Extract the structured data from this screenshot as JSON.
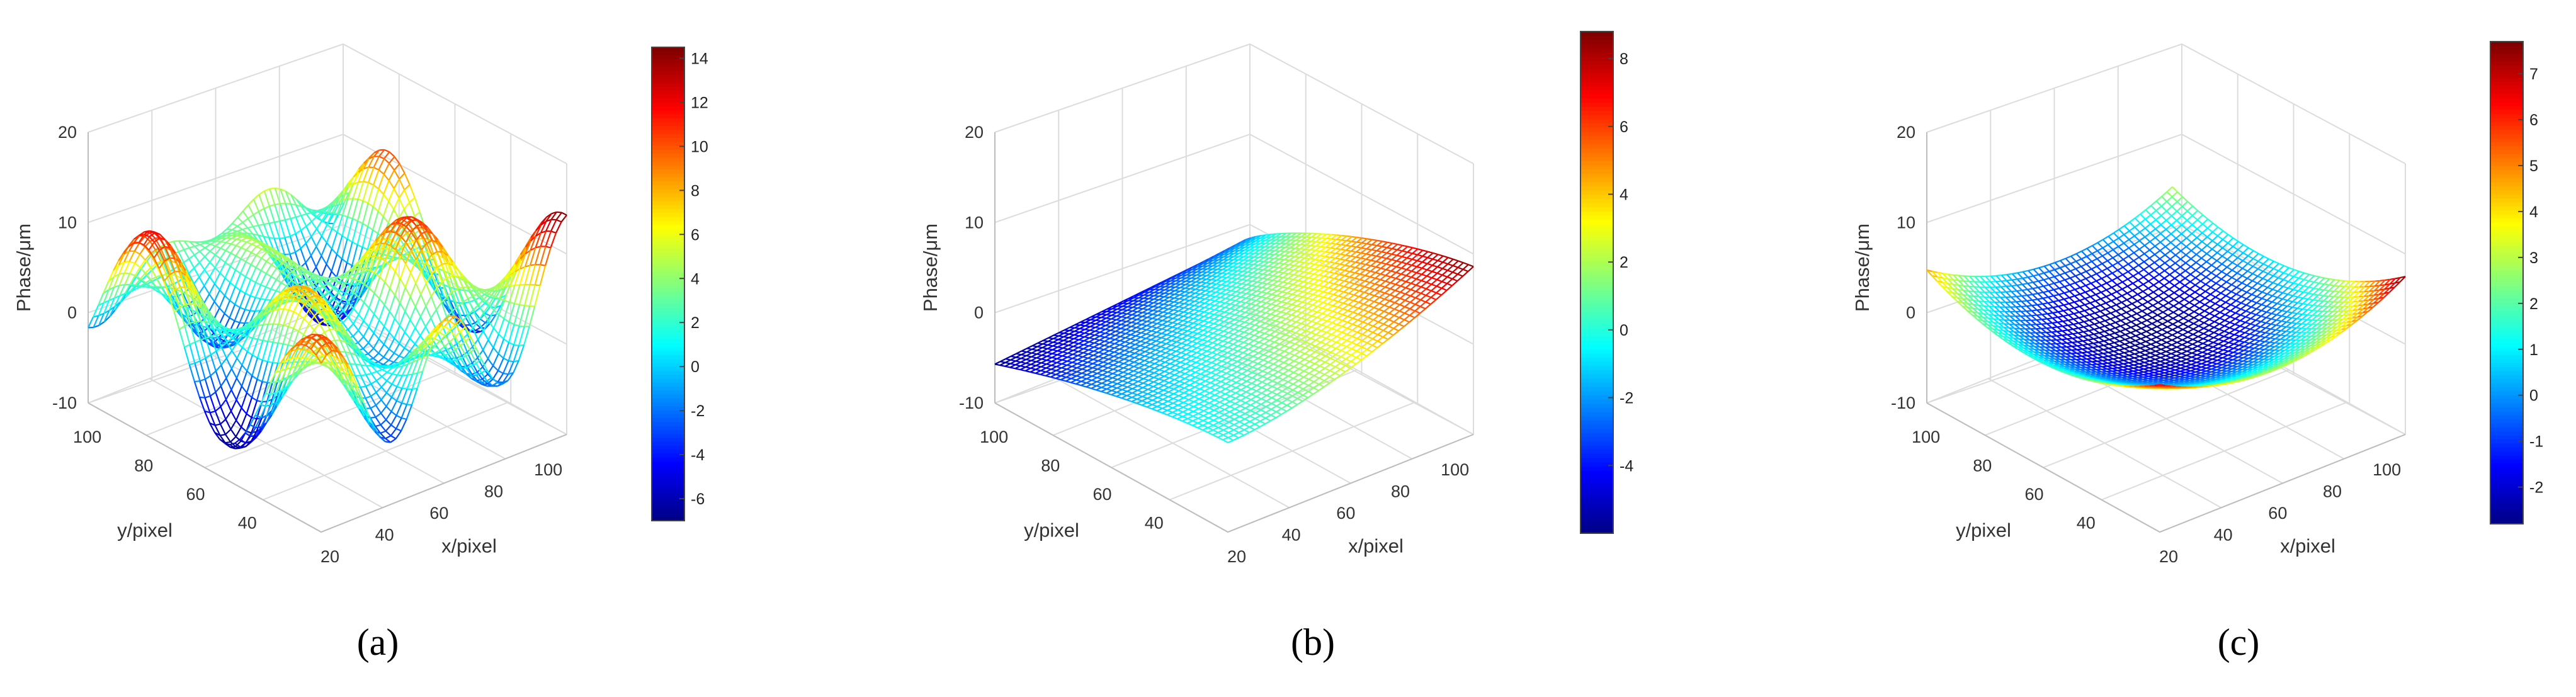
{
  "figure": {
    "captions": [
      "(a)",
      "(b)",
      "(c)"
    ]
  },
  "chart_data": [
    {
      "type": "surface",
      "panel": "a",
      "title": "",
      "xlabel": "x/pixel",
      "ylabel": "y/pixel",
      "zlabel": "Phase/μm",
      "xlim": [
        20,
        110
      ],
      "ylim": [
        20,
        110
      ],
      "zlim": [
        -10,
        20
      ],
      "x_ticks": [
        "20",
        "40",
        "60",
        "80",
        "100"
      ],
      "y_ticks": [
        "40",
        "60",
        "80",
        "100"
      ],
      "z_ticks": [
        "-10",
        "0",
        "10",
        "20"
      ],
      "colorbar": {
        "min": -7,
        "max": 14.5,
        "ticks": [
          "-6",
          "-4",
          "-2",
          "0",
          "2",
          "4",
          "6",
          "8",
          "10",
          "12",
          "14"
        ]
      },
      "surface": {
        "shape": "oscillating",
        "z_min": -6.9,
        "z_max": 14.3
      }
    },
    {
      "type": "surface",
      "panel": "b",
      "title": "",
      "xlabel": "x/pixel",
      "ylabel": "y/pixel",
      "zlabel": "Phase/μm",
      "xlim": [
        20,
        110
      ],
      "ylim": [
        20,
        110
      ],
      "zlim": [
        -10,
        20
      ],
      "x_ticks": [
        "20",
        "40",
        "60",
        "80",
        "100"
      ],
      "y_ticks": [
        "40",
        "60",
        "80",
        "100"
      ],
      "z_ticks": [
        "-10",
        "0",
        "10",
        "20"
      ],
      "colorbar": {
        "min": -6,
        "max": 8.8,
        "ticks": [
          "-4",
          "-2",
          "0",
          "2",
          "4",
          "6",
          "8"
        ]
      },
      "surface": {
        "shape": "tilted bowl",
        "z_min": -5.7,
        "z_max": 8.6
      }
    },
    {
      "type": "surface",
      "panel": "c",
      "title": "",
      "xlabel": "x/pixel",
      "ylabel": "y/pixel",
      "zlabel": "Phase/μm",
      "xlim": [
        20,
        110
      ],
      "ylim": [
        20,
        110
      ],
      "zlim": [
        -10,
        20
      ],
      "x_ticks": [
        "20",
        "40",
        "60",
        "80",
        "100"
      ],
      "y_ticks": [
        "40",
        "60",
        "80",
        "100"
      ],
      "z_ticks": [
        "-10",
        "0",
        "10",
        "20"
      ],
      "colorbar": {
        "min": -2.8,
        "max": 7.7,
        "ticks": [
          "-2",
          "-1",
          "0",
          "1",
          "2",
          "3",
          "4",
          "5",
          "6",
          "7"
        ]
      },
      "surface": {
        "shape": "bowl",
        "z_min": -2.7,
        "z_max": 7.5
      }
    }
  ]
}
